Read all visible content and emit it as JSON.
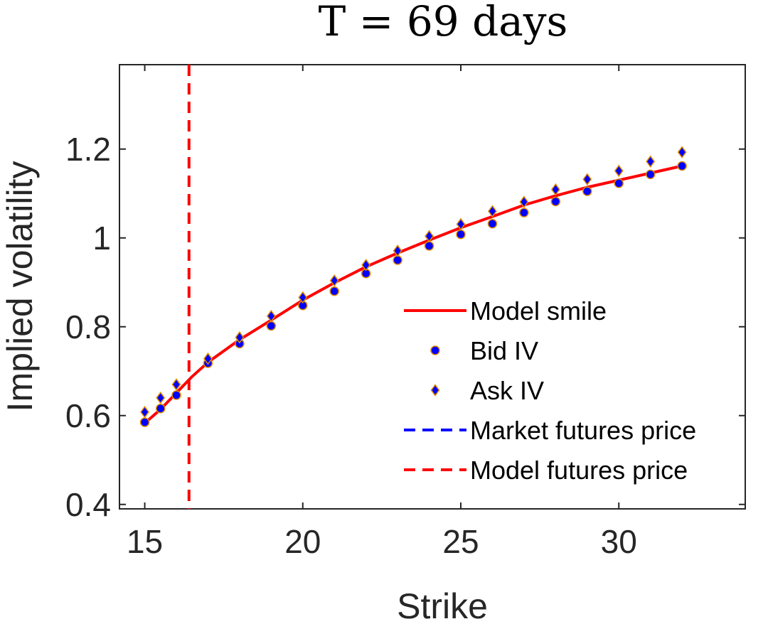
{
  "chart_data": {
    "type": "scatter",
    "title": "T = 69 days",
    "xlabel": "Strike",
    "ylabel": "Implied volatility",
    "xlim": [
      14.2,
      34.0
    ],
    "ylim": [
      0.39,
      1.39
    ],
    "xticks": [
      15,
      20,
      25,
      30
    ],
    "xtick_labels": [
      "15",
      "20",
      "25",
      "30"
    ],
    "yticks": [
      0.4,
      0.6,
      0.8,
      1.0,
      1.2
    ],
    "ytick_labels": [
      "0.4",
      "0.6",
      "0.8",
      "1",
      "1.2"
    ],
    "grid": false,
    "legend_position": "lower-right",
    "series": [
      {
        "name": "Model smile",
        "kind": "line",
        "color": "#ff0000",
        "x": [
          15,
          15.5,
          16,
          16.5,
          17,
          18,
          19,
          20,
          21,
          22,
          23,
          24,
          25,
          26,
          27,
          28,
          29,
          30,
          31,
          32
        ],
        "y": [
          0.583,
          0.614,
          0.651,
          0.688,
          0.72,
          0.771,
          0.815,
          0.86,
          0.899,
          0.935,
          0.966,
          0.995,
          1.023,
          1.048,
          1.074,
          1.095,
          1.114,
          1.13,
          1.146,
          1.162
        ]
      },
      {
        "name": "Bid IV",
        "kind": "marker",
        "marker": "circle",
        "color": "#0000ff",
        "edge_color": "#e08a00",
        "x": [
          15,
          15.5,
          16,
          17,
          18,
          19,
          20,
          21,
          22,
          23,
          24,
          25,
          26,
          27,
          28,
          29,
          30,
          31,
          32
        ],
        "y": [
          0.585,
          0.616,
          0.646,
          0.718,
          0.762,
          0.802,
          0.848,
          0.88,
          0.92,
          0.95,
          0.982,
          1.008,
          1.032,
          1.057,
          1.082,
          1.105,
          1.123,
          1.143,
          1.162
        ]
      },
      {
        "name": "Ask IV",
        "kind": "marker",
        "marker": "diamond",
        "color": "#0000ff",
        "edge_color": "#e08a00",
        "x": [
          15,
          15.5,
          16,
          17,
          18,
          19,
          20,
          21,
          22,
          23,
          24,
          25,
          26,
          27,
          28,
          29,
          30,
          31,
          32
        ],
        "y": [
          0.608,
          0.64,
          0.67,
          0.728,
          0.776,
          0.824,
          0.866,
          0.904,
          0.939,
          0.971,
          1.004,
          1.031,
          1.06,
          1.081,
          1.109,
          1.132,
          1.151,
          1.172,
          1.193
        ]
      },
      {
        "name": "Market futures price",
        "kind": "vline",
        "dash": true,
        "color": "#0000ff",
        "x": null
      },
      {
        "name": "Model futures price",
        "kind": "vline",
        "dash": true,
        "color": "#ff0000",
        "x": 16.4
      }
    ]
  }
}
